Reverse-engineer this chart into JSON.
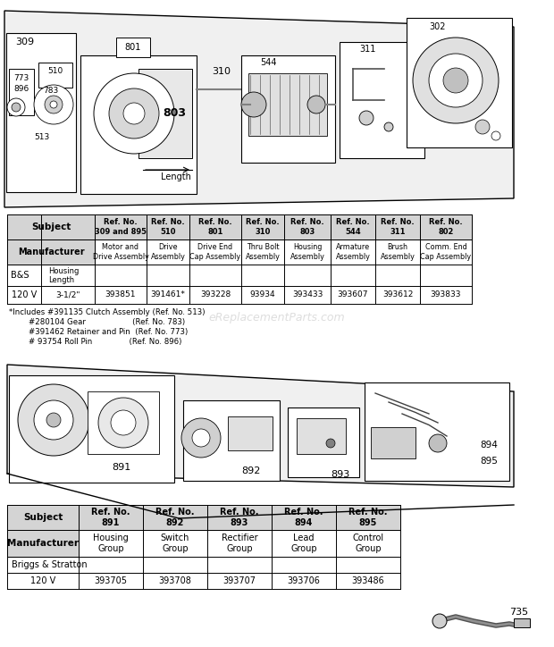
{
  "bg_color": "#ffffff",
  "table1": {
    "ref_headers": [
      "Ref. No.\n309 and 895",
      "Ref. No.\n510",
      "Ref. No.\n801",
      "Ref. No.\n310",
      "Ref. No.\n803",
      "Ref. No.\n544",
      "Ref. No.\n311",
      "Ref. No.\n802"
    ],
    "descs": [
      "Motor and\nDrive Assembly",
      "Drive\nAssembly",
      "Drive End\nCap Assembly",
      "Thru Bolt\nAssembly",
      "Housing\nAssembly",
      "Armature\nAssembly",
      "Brush\nAssembly",
      "Comm. End\nCap Assembly"
    ],
    "row4_data": [
      "393851",
      "391461*",
      "393228",
      "93934",
      "393433",
      "393607",
      "393612",
      "393833"
    ]
  },
  "footnotes": [
    "*Includes #391135 Clutch Assembly (Ref. No. 513)",
    "        #280104 Gear                   (Ref. No. 783)",
    "        #391462 Retainer and Pin  (Ref. No. 773)",
    "        # 93754 Roll Pin               (Ref. No. 896)"
  ],
  "table2": {
    "ref_headers": [
      "Ref. No.\n891",
      "Ref. No.\n892",
      "Ref. No.\n893",
      "Ref. No.\n894",
      "Ref. No.\n895"
    ],
    "descs": [
      "Housing\nGroup",
      "Switch\nGroup",
      "Rectifier\nGroup",
      "Lead\nGroup",
      "Control\nGroup"
    ],
    "row4_data": [
      "393705",
      "393708",
      "393707",
      "393706",
      "393486"
    ]
  },
  "gray": "#d0d0d0",
  "light_gray": "#e8e8e8",
  "black": "#000000"
}
